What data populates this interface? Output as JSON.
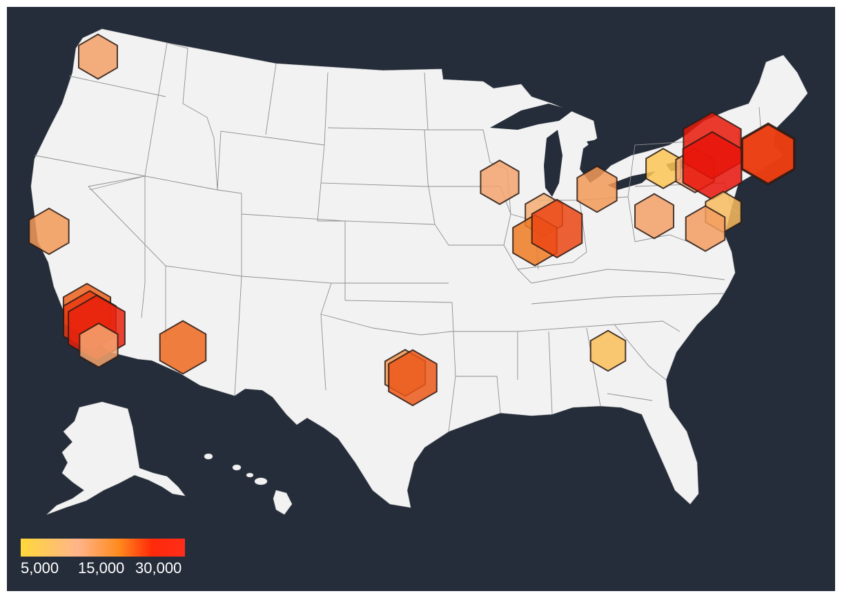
{
  "map": {
    "colors": {
      "background": "#252d3a",
      "land": "#f2f2f2",
      "state_border": "#8e8e8e"
    }
  },
  "legend": {
    "gradient_stops": [
      "#ffd83a",
      "#ffb48a",
      "#ff8a1c",
      "#ff2a0a",
      "#ff2d1a"
    ],
    "ticks": [
      {
        "label": "5,000",
        "value": 5000
      },
      {
        "label": "15,000",
        "value": 15000
      },
      {
        "label": "30,000",
        "value": 30000
      }
    ]
  },
  "chart_data": {
    "type": "hexbin-map",
    "region": "United States",
    "value_range": [
      5000,
      30000
    ],
    "bins": [
      {
        "area": "Seattle, WA",
        "value": 11000
      },
      {
        "area": "San Francisco Bay Area, CA",
        "value": 12000
      },
      {
        "area": "Los Angeles, CA",
        "value": 19000
      },
      {
        "area": "Los Angeles, CA",
        "value": 24000
      },
      {
        "area": "Los Angeles, CA",
        "value": 28000
      },
      {
        "area": "San Diego, CA",
        "value": 10500
      },
      {
        "area": "Phoenix, AZ",
        "value": 18000
      },
      {
        "area": "Dallas, TX",
        "value": 12500
      },
      {
        "area": "Dallas, TX",
        "value": 20000
      },
      {
        "area": "Atlanta, GA",
        "value": 7500
      },
      {
        "area": "Chicago, IL",
        "value": 10500
      },
      {
        "area": "Chicago, IL",
        "value": 9500
      },
      {
        "area": "Chicago, IL",
        "value": 16000
      },
      {
        "area": "Chicago, IL",
        "value": 22000
      },
      {
        "area": "Detroit, MI",
        "value": 12000
      },
      {
        "area": "Cleveland, OH",
        "value": 11000
      },
      {
        "area": "Buffalo, NY",
        "value": 7000
      },
      {
        "area": "Syracuse, NY",
        "value": 10500
      },
      {
        "area": "Albany, NY",
        "value": 29000
      },
      {
        "area": "Albany, NY",
        "value": 30000
      },
      {
        "area": "Boston, MA",
        "value": 25000
      },
      {
        "area": "Boston, MA",
        "value": 23000
      },
      {
        "area": "New York, NY",
        "value": 8000
      },
      {
        "area": "Philadelphia, PA",
        "value": 11500
      }
    ]
  }
}
